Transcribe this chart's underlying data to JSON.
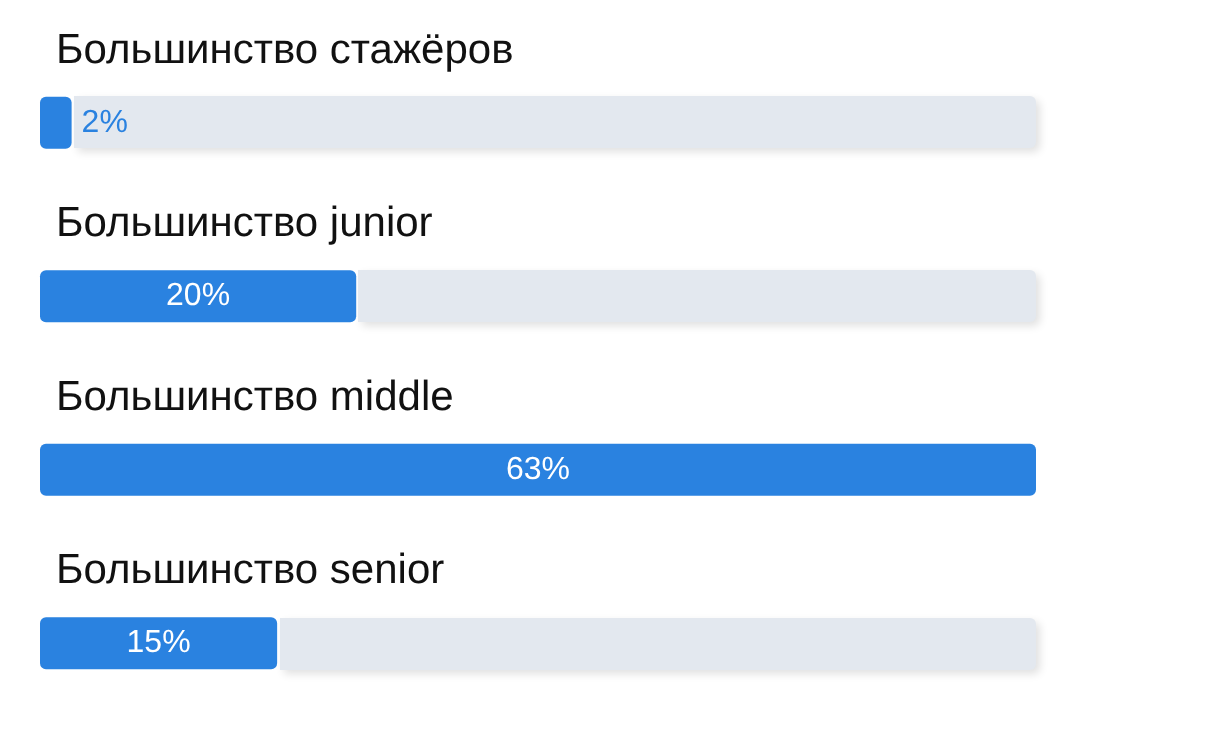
{
  "chart_data": {
    "type": "bar",
    "orientation": "horizontal",
    "categories": [
      "Большинство стажёров",
      "Большинство junior",
      "Большинство middle",
      "Большинство senior"
    ],
    "values": [
      2,
      20,
      63,
      15
    ],
    "color": "#2a82e0",
    "value_labels": [
      "2%",
      "20%",
      "63%",
      "15%"
    ],
    "xlim": [
      0,
      63
    ]
  }
}
